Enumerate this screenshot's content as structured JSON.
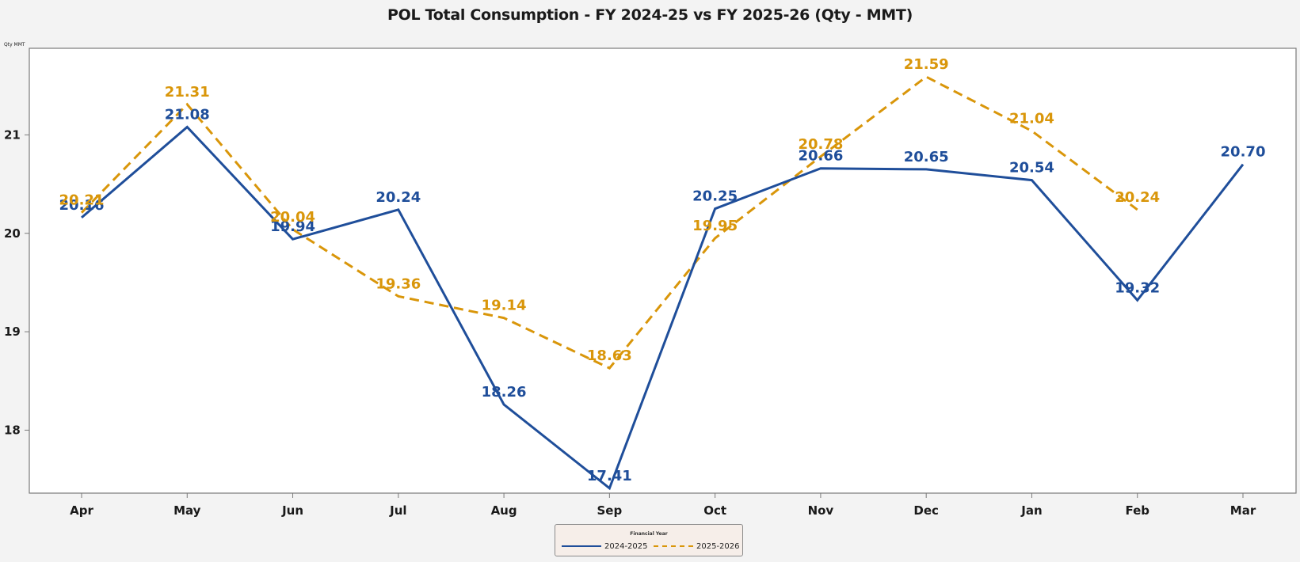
{
  "chart_data": {
    "type": "line",
    "title": "POL Total Consumption - FY 2024-25 vs FY 2025-26 (Qty - MMT)",
    "xlabel": "",
    "ylabel": "Qty MMT",
    "categories": [
      "Apr",
      "May",
      "Jun",
      "Jul",
      "Aug",
      "Sep",
      "Oct",
      "Nov",
      "Dec",
      "Jan",
      "Feb",
      "Mar"
    ],
    "y_ticks": [
      18,
      19,
      20,
      21
    ],
    "ylim": [
      17.36,
      21.88
    ],
    "grid": false,
    "legend": {
      "title": "Financial Year",
      "placement": "bottom-center"
    },
    "series": [
      {
        "name": "2024-2025",
        "color": "#1f4e9a",
        "style": "solid",
        "values": [
          20.16,
          21.08,
          19.94,
          20.24,
          18.26,
          17.41,
          20.25,
          20.66,
          20.65,
          20.54,
          19.32,
          20.7
        ],
        "labels": [
          "20.16",
          "21.08",
          "19.94",
          "20.24",
          "18.26",
          "17.41",
          "20.25",
          "20.66",
          "20.65",
          "20.54",
          "19.32",
          "20.70"
        ]
      },
      {
        "name": "2025-2026",
        "color": "#d9960a",
        "style": "dashed",
        "values": [
          20.21,
          21.31,
          20.04,
          19.36,
          19.14,
          18.63,
          19.95,
          20.78,
          21.59,
          21.04,
          20.24,
          null
        ],
        "labels": [
          "20.21",
          "21.31",
          "20.04",
          "19.36",
          "19.14",
          "18.63",
          "19.95",
          "20.78",
          "21.59",
          "21.04",
          "20.24",
          null
        ]
      }
    ]
  }
}
